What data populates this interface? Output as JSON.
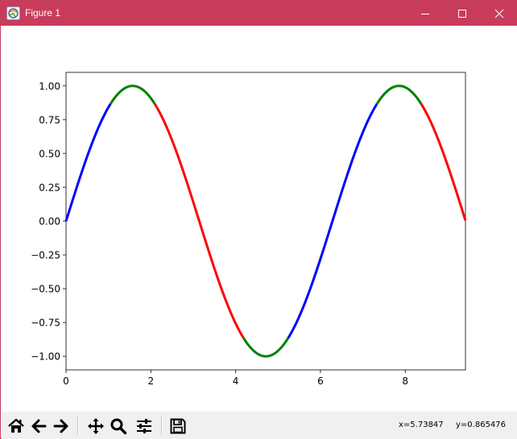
{
  "window": {
    "title": "Figure 1",
    "titlebar_color": "#c93b5b",
    "controls": [
      "minimize-icon",
      "maximize-icon",
      "close-icon"
    ]
  },
  "toolbar": {
    "buttons": [
      {
        "name": "home",
        "icon": "home-icon"
      },
      {
        "name": "back",
        "icon": "arrow-left-icon"
      },
      {
        "name": "forward",
        "icon": "arrow-right-icon"
      },
      {
        "name": "pan",
        "icon": "move-icon"
      },
      {
        "name": "zoom",
        "icon": "magnifier-icon"
      },
      {
        "name": "configure-subplots",
        "icon": "sliders-icon"
      },
      {
        "name": "save",
        "icon": "floppy-disk-icon"
      }
    ],
    "coord_x": "x=5.73847",
    "coord_y": "y=0.865476"
  },
  "chart_data": {
    "type": "line",
    "function": "sin(x)",
    "title": "",
    "xlabel": "",
    "ylabel": "",
    "xlim": [
      0,
      9.42
    ],
    "ylim": [
      -1.1,
      1.1
    ],
    "xticks": [
      0,
      2,
      4,
      6,
      8
    ],
    "xtick_labels": [
      "0",
      "2",
      "4",
      "6",
      "8"
    ],
    "yticks": [
      1.0,
      0.75,
      0.5,
      0.25,
      0.0,
      -0.25,
      -0.5,
      -0.75,
      -1.0
    ],
    "ytick_labels": [
      "1.00",
      "0.75",
      "0.50",
      "0.25",
      "0.00",
      "−0.25",
      "−0.50",
      "−0.75",
      "−1.00"
    ],
    "grid": false,
    "color_rule": "green where |y| > 0.87, blue where slope > 0, red where slope < 0",
    "colors": {
      "rising": "#0000ff",
      "falling": "#ff0000",
      "peak": "#008000"
    },
    "series": [
      {
        "x": [
          0.0,
          0.5,
          1.0,
          1.0472
        ],
        "y": [
          0.0,
          0.479,
          0.841,
          0.866
        ],
        "color": "#0000ff"
      },
      {
        "x": [
          1.0472,
          1.5708,
          2.0944
        ],
        "y": [
          0.866,
          1.0,
          0.866
        ],
        "color": "#008000"
      },
      {
        "x": [
          2.0944,
          2.5,
          3.0,
          3.5,
          4.0,
          4.1888
        ],
        "y": [
          0.866,
          0.598,
          0.141,
          -0.351,
          -0.757,
          -0.866
        ],
        "color": "#ff0000"
      },
      {
        "x": [
          4.1888,
          4.7124,
          5.236
        ],
        "y": [
          -0.866,
          -1.0,
          -0.866
        ],
        "color": "#008000"
      },
      {
        "x": [
          5.236,
          5.5,
          6.0,
          6.5,
          7.0,
          7.3304
        ],
        "y": [
          -0.866,
          -0.706,
          -0.279,
          0.215,
          0.657,
          0.866
        ],
        "color": "#0000ff"
      },
      {
        "x": [
          7.3304,
          7.854,
          8.3776
        ],
        "y": [
          0.866,
          1.0,
          0.866
        ],
        "color": "#008000"
      },
      {
        "x": [
          8.3776,
          9.0,
          9.42
        ],
        "y": [
          0.866,
          0.412,
          0.0
        ],
        "color": "#ff0000"
      }
    ]
  }
}
